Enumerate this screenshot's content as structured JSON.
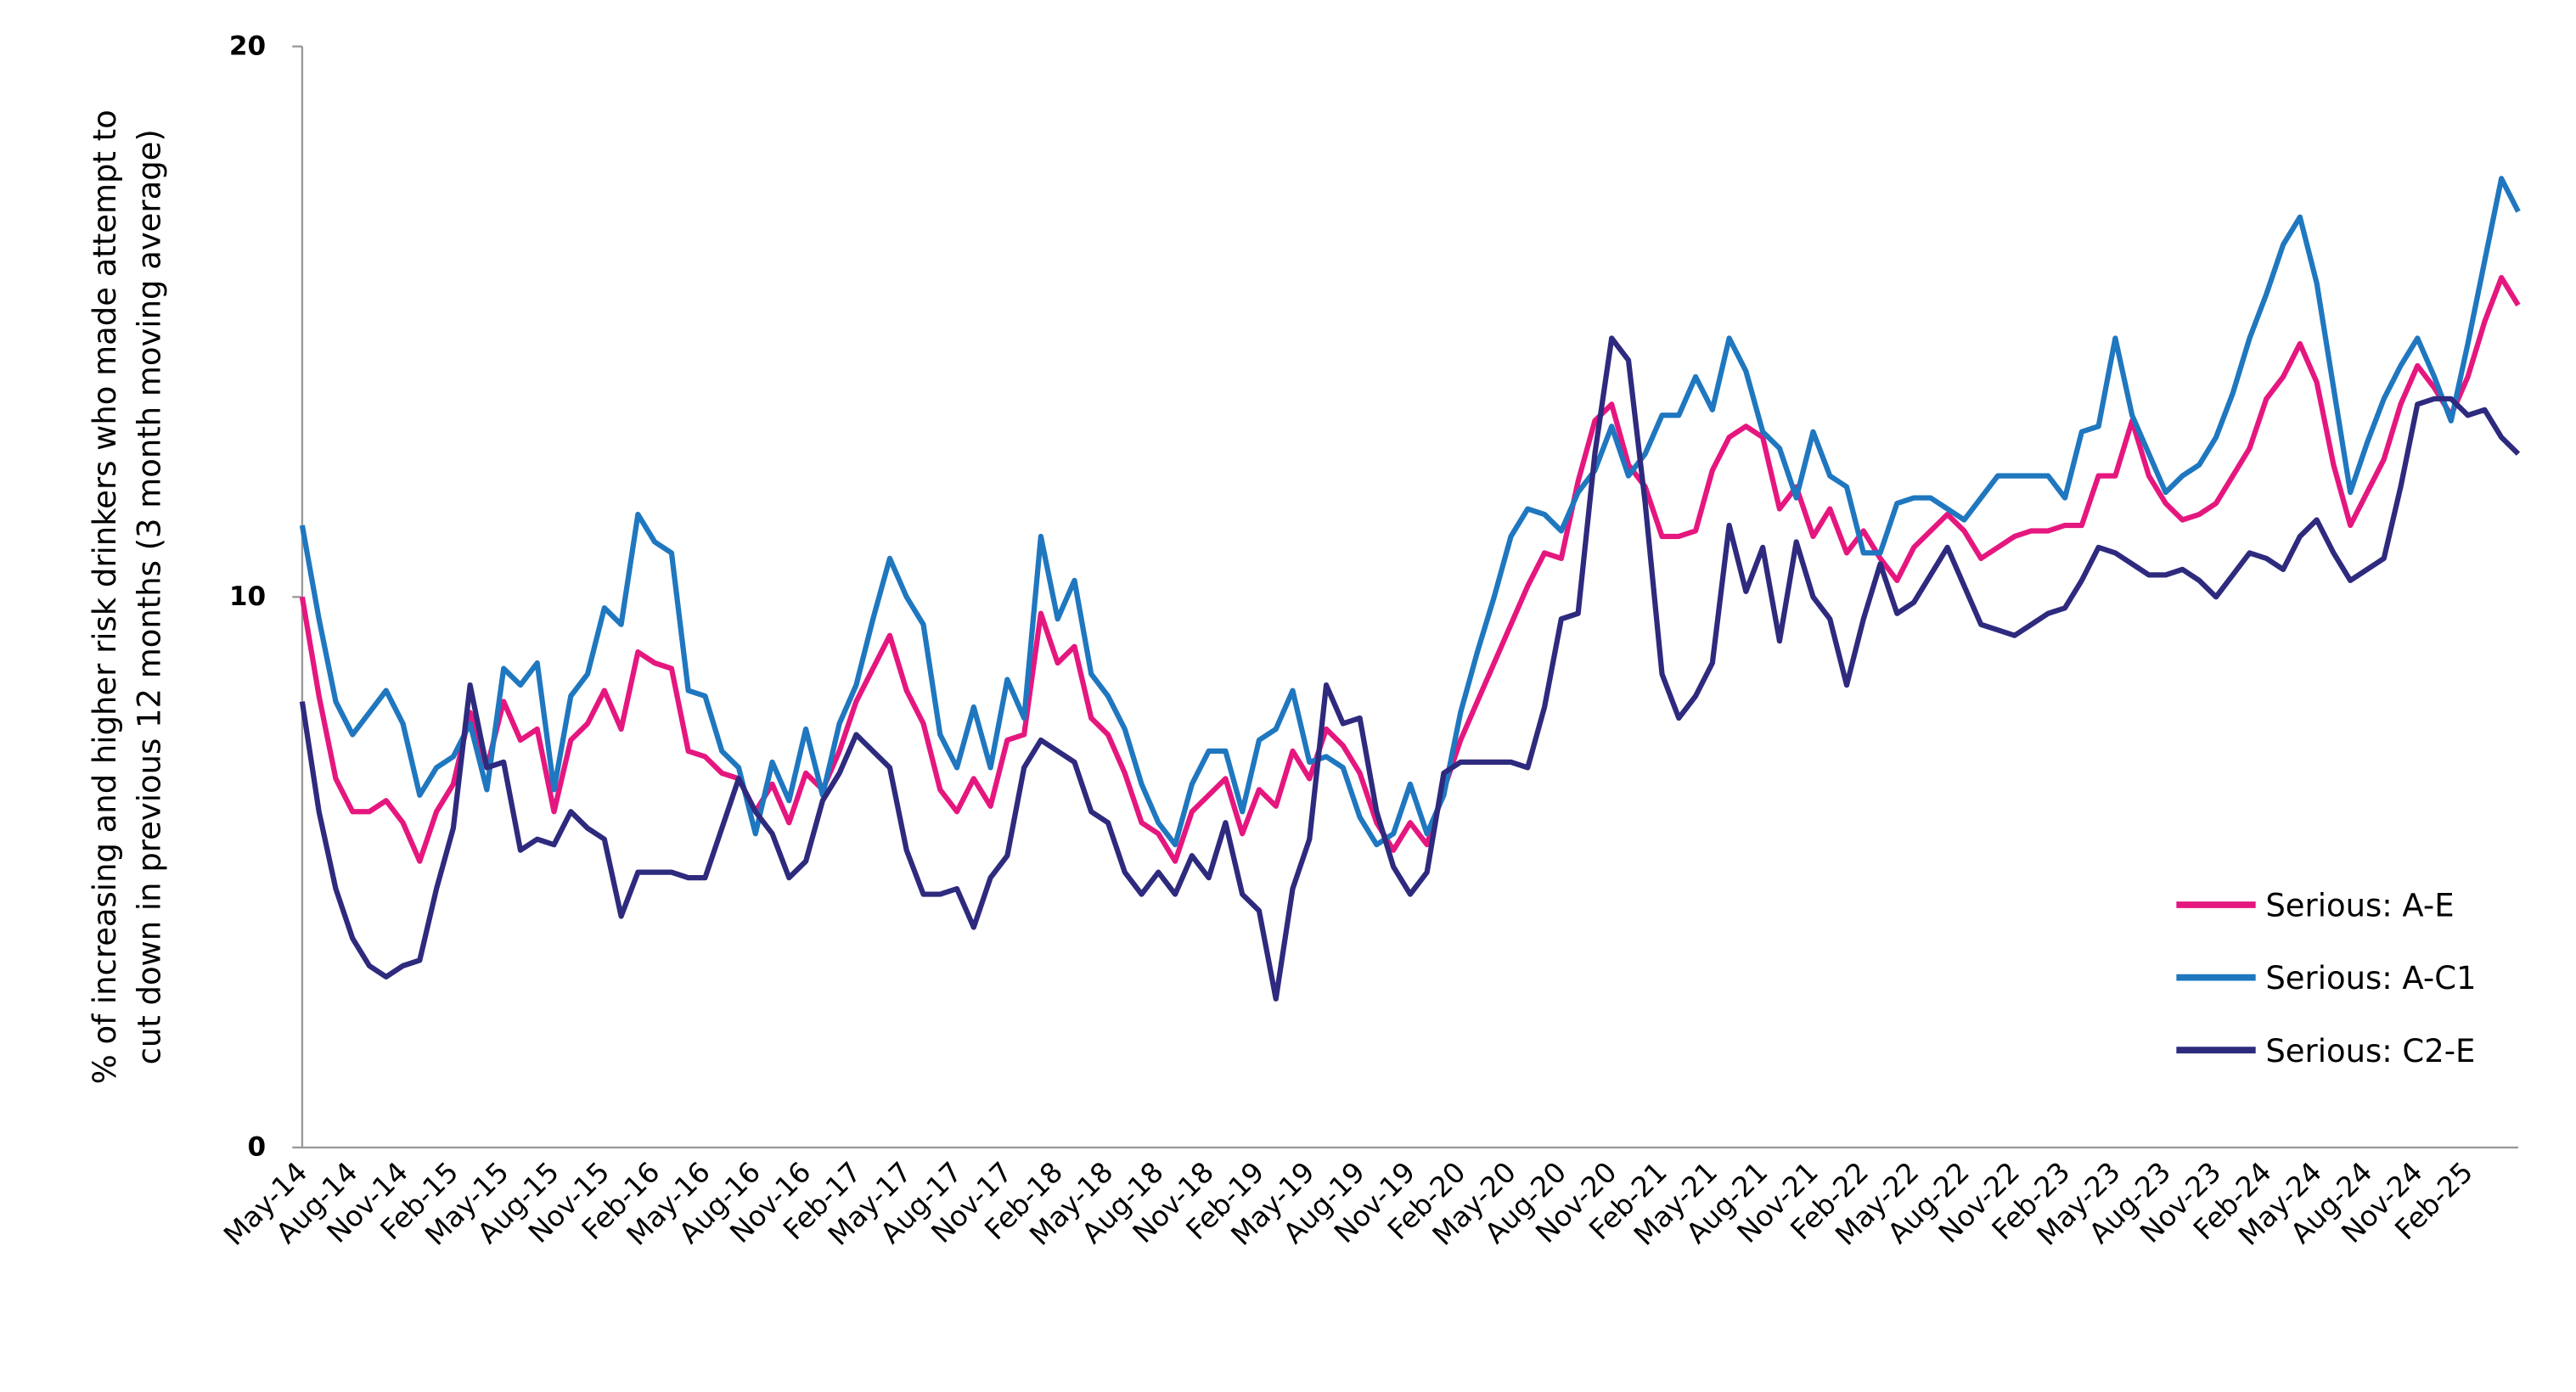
{
  "chart_data": {
    "type": "line",
    "y_label": [
      "% of increasing and higher risk drinkers who made attempt to",
      "cut down in previous 12 months (3 month moving average)"
    ],
    "categories": [
      "May-14",
      null,
      null,
      "Aug-14",
      null,
      null,
      "Nov-14",
      null,
      null,
      "Feb-15",
      null,
      null,
      "May-15",
      null,
      null,
      "Aug-15",
      null,
      null,
      "Nov-15",
      null,
      null,
      "Feb-16",
      null,
      null,
      "May-16",
      null,
      null,
      "Aug-16",
      null,
      null,
      "Nov-16",
      null,
      null,
      "Feb-17",
      null,
      null,
      "May-17",
      null,
      null,
      "Aug-17",
      null,
      null,
      "Nov-17",
      null,
      null,
      "Feb-18",
      null,
      null,
      "May-18",
      null,
      null,
      "Aug-18",
      null,
      null,
      "Nov-18",
      null,
      null,
      "Feb-19",
      null,
      null,
      "May-19",
      null,
      null,
      "Aug-19",
      null,
      null,
      "Nov-19",
      null,
      null,
      "Feb-20",
      null,
      null,
      "May-20",
      null,
      null,
      "Aug-20",
      null,
      null,
      "Nov-20",
      null,
      null,
      "Feb-21",
      null,
      null,
      "May-21",
      null,
      null,
      "Aug-21",
      null,
      null,
      "Nov-21",
      null,
      null,
      "Feb-22",
      null,
      null,
      "May-22",
      null,
      null,
      "Aug-22",
      null,
      null,
      "Nov-22",
      null,
      null,
      "Feb-23",
      null,
      null,
      "May-23",
      null,
      null,
      "Aug-23",
      null,
      null,
      "Nov-23",
      null,
      null,
      "Feb-24",
      null,
      null,
      "May-24",
      null,
      null,
      "Aug-24",
      null,
      null,
      "Nov-24",
      null,
      null,
      "Feb-25",
      null,
      null,
      null
    ],
    "series": [
      {
        "name": "Serious: A-E",
        "color": "#e5177f",
        "values": [
          10.0,
          8.2,
          6.7,
          6.1,
          6.1,
          6.3,
          5.9,
          5.2,
          6.1,
          6.6,
          7.9,
          6.9,
          8.1,
          7.4,
          7.6,
          6.1,
          7.4,
          7.7,
          8.3,
          7.6,
          9.0,
          8.8,
          8.7,
          7.2,
          7.1,
          6.8,
          6.7,
          6.1,
          6.6,
          5.9,
          6.8,
          6.5,
          7.2,
          8.1,
          8.7,
          9.3,
          8.3,
          7.7,
          6.5,
          6.1,
          6.7,
          6.2,
          7.4,
          7.5,
          9.7,
          8.8,
          9.1,
          7.8,
          7.5,
          6.8,
          5.9,
          5.7,
          5.2,
          6.1,
          6.4,
          6.7,
          5.7,
          6.5,
          6.2,
          7.2,
          6.7,
          7.6,
          7.3,
          6.8,
          5.9,
          5.4,
          5.9,
          5.5,
          6.5,
          7.4,
          8.1,
          8.8,
          9.5,
          10.2,
          10.8,
          10.7,
          12.1,
          13.2,
          13.5,
          12.4,
          12.0,
          11.1,
          11.1,
          11.2,
          12.3,
          12.9,
          13.1,
          12.9,
          11.6,
          12.0,
          11.1,
          11.6,
          10.8,
          11.2,
          10.7,
          10.3,
          10.9,
          11.2,
          11.5,
          11.2,
          10.7,
          10.9,
          11.1,
          11.2,
          11.2,
          11.3,
          11.3,
          12.2,
          12.2,
          13.2,
          12.2,
          11.7,
          11.4,
          11.5,
          11.7,
          12.2,
          12.7,
          13.6,
          14.0,
          14.6,
          13.9,
          12.4,
          11.3,
          11.9,
          12.5,
          13.5,
          14.2,
          13.8,
          13.3,
          14.0,
          15.0,
          15.8,
          15.3
        ]
      },
      {
        "name": "Serious: A-C1",
        "color": "#1f77bf",
        "values": [
          11.3,
          9.6,
          8.1,
          7.5,
          7.9,
          8.3,
          7.7,
          6.4,
          6.9,
          7.1,
          7.7,
          6.5,
          8.7,
          8.4,
          8.8,
          6.5,
          8.2,
          8.6,
          9.8,
          9.5,
          11.5,
          11.0,
          10.8,
          8.3,
          8.2,
          7.2,
          6.9,
          5.7,
          7.0,
          6.3,
          7.6,
          6.4,
          7.7,
          8.4,
          9.6,
          10.7,
          10.0,
          9.5,
          7.5,
          6.9,
          8.0,
          6.9,
          8.5,
          7.8,
          11.1,
          9.6,
          10.3,
          8.6,
          8.2,
          7.6,
          6.6,
          5.9,
          5.5,
          6.6,
          7.2,
          7.2,
          6.1,
          7.4,
          7.6,
          8.3,
          7.0,
          7.1,
          6.9,
          6.0,
          5.5,
          5.7,
          6.6,
          5.7,
          6.4,
          7.9,
          9.0,
          10.0,
          11.1,
          11.6,
          11.5,
          11.2,
          11.9,
          12.3,
          13.1,
          12.2,
          12.6,
          13.3,
          13.3,
          14.0,
          13.4,
          14.7,
          14.1,
          13.0,
          12.7,
          11.8,
          13.0,
          12.2,
          12.0,
          10.8,
          10.8,
          11.7,
          11.8,
          11.8,
          11.6,
          11.4,
          11.8,
          12.2,
          12.2,
          12.2,
          12.2,
          11.8,
          13.0,
          13.1,
          14.7,
          13.3,
          12.6,
          11.9,
          12.2,
          12.4,
          12.9,
          13.7,
          14.7,
          15.5,
          16.4,
          16.9,
          15.7,
          13.8,
          11.9,
          12.8,
          13.6,
          14.2,
          14.7,
          14.0,
          13.2,
          14.6,
          16.1,
          17.6,
          17.0
        ]
      },
      {
        "name": "Serious: C2-E",
        "color": "#2e2a7e",
        "values": [
          8.1,
          6.1,
          4.7,
          3.8,
          3.3,
          3.1,
          3.3,
          3.4,
          4.7,
          5.8,
          8.4,
          6.9,
          7.0,
          5.4,
          5.6,
          5.5,
          6.1,
          5.8,
          5.6,
          4.2,
          5.0,
          5.0,
          5.0,
          4.9,
          4.9,
          5.8,
          6.7,
          6.1,
          5.7,
          4.9,
          5.2,
          6.3,
          6.8,
          7.5,
          7.2,
          6.9,
          5.4,
          4.6,
          4.6,
          4.7,
          4.0,
          4.9,
          5.3,
          6.9,
          7.4,
          7.2,
          7.0,
          6.1,
          5.9,
          5.0,
          4.6,
          5.0,
          4.6,
          5.3,
          4.9,
          5.9,
          4.6,
          4.3,
          2.7,
          4.7,
          5.6,
          8.4,
          7.7,
          7.8,
          6.1,
          5.1,
          4.6,
          5.0,
          6.8,
          7.0,
          7.0,
          7.0,
          7.0,
          6.9,
          8.0,
          9.6,
          9.7,
          12.6,
          14.7,
          14.3,
          11.7,
          8.6,
          7.8,
          8.2,
          8.8,
          11.3,
          10.1,
          10.9,
          9.2,
          11.0,
          10.0,
          9.6,
          8.4,
          9.6,
          10.6,
          9.7,
          9.9,
          10.4,
          10.9,
          10.2,
          9.5,
          9.4,
          9.3,
          9.5,
          9.7,
          9.8,
          10.3,
          10.9,
          10.8,
          10.6,
          10.4,
          10.4,
          10.5,
          10.3,
          10.0,
          10.4,
          10.8,
          10.7,
          10.5,
          11.1,
          11.4,
          10.8,
          10.3,
          10.5,
          10.7,
          12.0,
          13.5,
          13.6,
          13.6,
          13.3,
          13.4,
          12.9,
          12.6
        ]
      }
    ],
    "ylim": [
      0,
      20
    ],
    "yticks": [
      0,
      10,
      20
    ],
    "grid": false,
    "legend": "lower right"
  }
}
